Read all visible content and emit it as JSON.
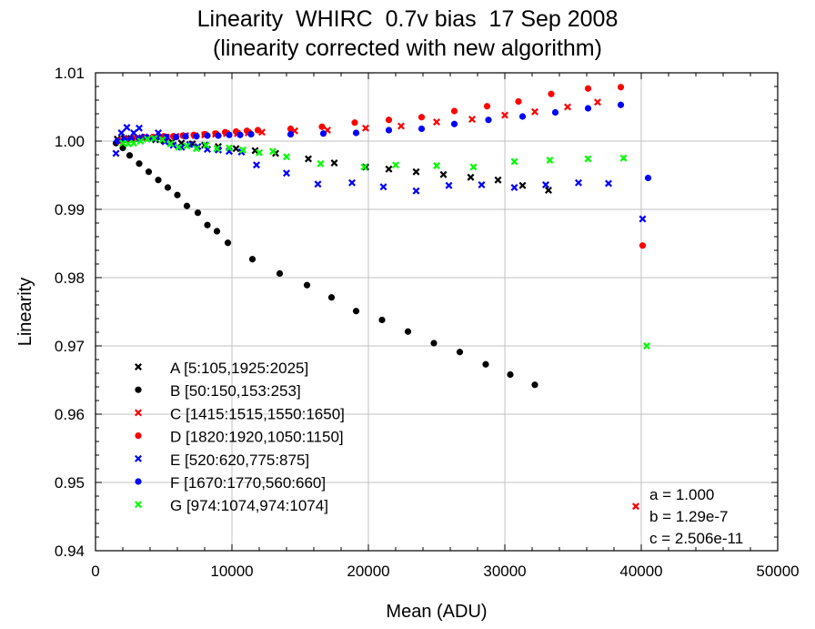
{
  "chart_data": {
    "type": "scatter",
    "title_line1": "Linearity  WHIRC  0.7v bias  17 Sep 2008",
    "title_line2": "(linearity corrected with new algorithm)",
    "xlabel": "Mean (ADU)",
    "ylabel": "Linearity",
    "xlim": [
      0,
      50000
    ],
    "ylim": [
      0.94,
      1.01
    ],
    "xticks": [
      0,
      10000,
      20000,
      30000,
      40000,
      50000
    ],
    "yticks": [
      0.94,
      0.95,
      0.96,
      0.97,
      0.98,
      0.99,
      1.0,
      1.01
    ],
    "grid": true,
    "legend_placement": "lower-left",
    "series": [
      {
        "name": "A  [5:105,1925:2025]",
        "marker": "x",
        "color": "#000000",
        "x": [
          1600,
          2100,
          2600,
          3200,
          3800,
          4400,
          5000,
          5600,
          6300,
          7100,
          8000,
          9000,
          10300,
          11700,
          13200,
          15600,
          17500,
          19800,
          21500,
          23500,
          25500,
          27500,
          29500,
          31300,
          33200
        ],
        "y": [
          1.0003,
          1.0004,
          1.0004,
          1.0004,
          1.0003,
          1.0002,
          1.0001,
          0.9999,
          0.9997,
          0.9996,
          0.9994,
          0.9992,
          0.9989,
          0.9986,
          0.9982,
          0.9974,
          0.9968,
          0.9962,
          0.9959,
          0.9955,
          0.9951,
          0.9947,
          0.9943,
          0.9935,
          0.9928
        ]
      },
      {
        "name": "B  [50:150,153:253]",
        "marker": "o",
        "color": "#000000",
        "x": [
          1500,
          2000,
          2500,
          3200,
          3900,
          4600,
          5300,
          6000,
          6700,
          7500,
          8200,
          8900,
          9700,
          11500,
          13500,
          15500,
          17300,
          19100,
          21000,
          22900,
          24800,
          26700,
          28600,
          30400,
          32200
        ],
        "y": [
          0.9997,
          0.999,
          0.9979,
          0.9967,
          0.9955,
          0.9943,
          0.9932,
          0.9921,
          0.9905,
          0.9895,
          0.9877,
          0.9868,
          0.9851,
          0.9827,
          0.9806,
          0.9789,
          0.9771,
          0.9751,
          0.9738,
          0.9721,
          0.9704,
          0.9691,
          0.9673,
          0.9658,
          0.9643
        ]
      },
      {
        "name": "C  [1415:1515,1550:1650]",
        "marker": "x",
        "color": "#ff0000",
        "x": [
          1800,
          2300,
          2800,
          3400,
          4000,
          4600,
          5200,
          5900,
          6600,
          7300,
          8000,
          8800,
          9600,
          10400,
          11200,
          12200,
          14600,
          17000,
          19800,
          22400,
          25000,
          27600,
          30000,
          32200,
          34600,
          36800,
          39600
        ],
        "y": [
          0.9999,
          1.0002,
          1.0004,
          1.0005,
          1.0005,
          1.0006,
          1.0006,
          1.0007,
          1.0008,
          1.0008,
          1.0009,
          1.001,
          1.0011,
          1.0011,
          1.0012,
          1.0013,
          1.0015,
          1.0016,
          1.0019,
          1.0022,
          1.0028,
          1.0032,
          1.0038,
          1.0043,
          1.005,
          1.0057,
          0.9465
        ]
      },
      {
        "name": "D  [1820:1920,1050:1150]",
        "marker": "o",
        "color": "#ff0000",
        "x": [
          1700,
          2200,
          2800,
          3500,
          4200,
          5000,
          5700,
          6400,
          7200,
          8000,
          8800,
          9500,
          10300,
          11100,
          11900,
          14300,
          16600,
          19000,
          21500,
          23900,
          26300,
          28700,
          31000,
          33400,
          36100,
          38500,
          40100
        ],
        "y": [
          1.0001,
          1.0003,
          1.0004,
          1.0006,
          1.0006,
          1.0007,
          1.0007,
          1.0008,
          1.0009,
          1.001,
          1.0011,
          1.0013,
          1.0014,
          1.0015,
          1.0016,
          1.0018,
          1.0021,
          1.0027,
          1.0031,
          1.0035,
          1.0044,
          1.0051,
          1.0058,
          1.0069,
          1.0077,
          1.0079,
          0.9847
        ]
      },
      {
        "name": "E  [520:620,775:875]",
        "marker": "x",
        "color": "#0000ff",
        "x": [
          1500,
          1900,
          2300,
          2800,
          3200,
          3600,
          4100,
          4600,
          5100,
          5700,
          6300,
          6900,
          7500,
          8200,
          9000,
          9800,
          10700,
          11800,
          14000,
          16300,
          18800,
          21100,
          23500,
          25900,
          28300,
          30700,
          33000,
          35400,
          37600,
          40100
        ],
        "y": [
          0.9982,
          1.0012,
          1.002,
          1.0012,
          1.0019,
          1.0006,
          1.0003,
          1.0012,
          0.9999,
          0.9994,
          0.9991,
          0.9995,
          0.9992,
          0.9988,
          0.9987,
          0.9985,
          0.9984,
          0.9965,
          0.9953,
          0.9937,
          0.9939,
          0.9933,
          0.9927,
          0.9935,
          0.9936,
          0.9932,
          0.9936,
          0.9939,
          0.9938,
          0.9886
        ]
      },
      {
        "name": "F  [1670:1770,560:660]",
        "marker": "o",
        "color": "#0000ff",
        "x": [
          1600,
          2100,
          2600,
          3200,
          3800,
          4500,
          5200,
          5900,
          6600,
          7400,
          8200,
          9000,
          9800,
          10600,
          11400,
          14300,
          16700,
          19100,
          21500,
          23900,
          26300,
          28800,
          31300,
          33700,
          36100,
          38500,
          40500
        ],
        "y": [
          1.0,
          1.0002,
          1.0003,
          1.0004,
          1.0005,
          1.0005,
          1.0006,
          1.0006,
          1.0007,
          1.0007,
          1.0008,
          1.0008,
          1.0009,
          1.0009,
          1.001,
          1.001,
          1.0011,
          1.0012,
          1.0016,
          1.0018,
          1.0025,
          1.0031,
          1.0036,
          1.0042,
          1.0048,
          1.0053,
          0.9946
        ]
      },
      {
        "name": "G  [974:1074,974:1074]",
        "marker": "x",
        "color": "#00ff00",
        "x": [
          2000,
          2400,
          2800,
          3300,
          3800,
          4300,
          4900,
          5500,
          6100,
          6700,
          7400,
          8100,
          8900,
          9800,
          10800,
          12000,
          13000,
          14000,
          16500,
          19700,
          22000,
          25000,
          27700,
          30700,
          33300,
          36100,
          38700,
          40400
        ],
        "y": [
          0.9997,
          0.9996,
          0.9997,
          1.0,
          1.0003,
          1.0004,
          1.0002,
          0.9996,
          0.9991,
          0.9993,
          0.9989,
          0.9994,
          0.9989,
          0.999,
          0.9987,
          0.9983,
          0.9985,
          0.9977,
          0.9967,
          0.9962,
          0.9965,
          0.9964,
          0.9962,
          0.997,
          0.9972,
          0.9974,
          0.9975,
          0.97
        ]
      }
    ],
    "annotations": [
      "a = 1.000",
      "b = 1.29e-7",
      "c = 2.506e-11"
    ]
  },
  "colors": {
    "red": "#ff0000",
    "blue": "#0000ff",
    "green": "#00ff00",
    "black": "#000000",
    "grid": "#c0c0c0"
  }
}
